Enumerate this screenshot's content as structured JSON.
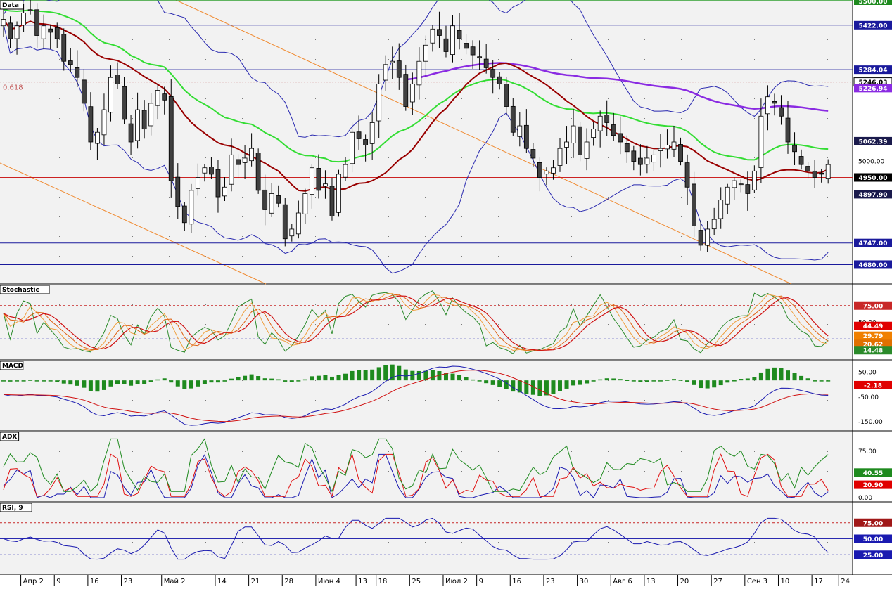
{
  "chart_data": [
    {
      "type": "candlestick",
      "title": "Data",
      "ylim": [
        4620,
        5500
      ],
      "y_tick_labels": [
        "5500.00",
        "5000.00"
      ],
      "horizontal_lines": [
        {
          "value": 5422,
          "label": "5422.00",
          "color": "#1a1a9c"
        },
        {
          "value": 5284.04,
          "label": "5284.04",
          "color": "#1a1a9c"
        },
        {
          "value": 5246.03,
          "label": "5246.03",
          "color": "#b03030",
          "dotted": true
        },
        {
          "value": 4950,
          "label": "4950.00",
          "color": "#cc2222"
        },
        {
          "value": 4747,
          "label": "4747.00",
          "color": "#1a1a9c"
        },
        {
          "value": 4680,
          "label": "4680.00",
          "color": "#1a1a9c"
        }
      ],
      "series_badges": [
        {
          "label": "5226.94",
          "value": 5226.94,
          "color": "#8a2be2"
        },
        {
          "label": "5062.39",
          "value": 5062.39,
          "color": "#1a1a4c"
        },
        {
          "label": "4950.00",
          "value": 4950,
          "color": "#000000"
        },
        {
          "label": "4897.90",
          "value": 4897.9,
          "color": "#1a1a4c"
        }
      ],
      "fib_label": "0.618",
      "close": [
        5440,
        5380,
        5420,
        5460,
        5470,
        5390,
        5420,
        5400,
        5380,
        5310,
        5300,
        5260,
        5180,
        5060,
        5090,
        5160,
        5260,
        5240,
        5130,
        5060,
        5160,
        5100,
        5180,
        5220,
        5190,
        4940,
        4860,
        4810,
        4910,
        4950,
        4980,
        4960,
        4890,
        4920,
        5020,
        4990,
        5010,
        5040,
        4910,
        4850,
        4900,
        4870,
        4760,
        4790,
        4840,
        4900,
        4980,
        4910,
        4930,
        4830,
        4960,
        4990,
        5090,
        5070,
        5050,
        5120,
        5240,
        5300,
        5310,
        5260,
        5170,
        5240,
        5310,
        5360,
        5410,
        5390,
        5340,
        5420,
        5380,
        5350,
        5330,
        5320,
        5290,
        5260,
        5240,
        5170,
        5090,
        5110,
        5040,
        5010,
        4950,
        4970,
        4980,
        5040,
        5060,
        5110,
        5020,
        5060,
        5100,
        5140,
        5120,
        5080,
        5060,
        5030,
        5000,
        4990,
        5010,
        5020,
        5040,
        5050,
        5060,
        5000,
        4920,
        4800,
        4740,
        4790,
        4820,
        4880,
        4920,
        4940,
        4930,
        4900,
        4970,
        5140,
        5200,
        5180,
        5140,
        5060,
        5030,
        4990,
        4970,
        4950,
        4960,
        4990
      ]
    },
    {
      "type": "line",
      "title": "Stochastic",
      "ylim": [
        0,
        100
      ],
      "reference_lines": [
        75,
        25
      ],
      "y_tick_labels": [
        "50.00"
      ],
      "value_badges": [
        {
          "label": "75.00",
          "value": 75,
          "color": "#c82828"
        },
        {
          "label": "44.49",
          "value": 44.49,
          "color": "#e00000"
        },
        {
          "label": "29.79",
          "value": 29.79,
          "color": "#f08000"
        },
        {
          "label": "20.62",
          "value": 20.62,
          "color": "#e07000"
        },
        {
          "label": "14.48",
          "value": 14.48,
          "color": "#2a8a2a"
        }
      ]
    },
    {
      "type": "bar+line",
      "title": "MACD",
      "ylim": [
        -170,
        80
      ],
      "y_tick_labels": [
        "50.00",
        "-50.00",
        "-150.00"
      ],
      "value_badges": [
        {
          "label": "-2.18",
          "value": -2.18,
          "color": "#e00000"
        }
      ]
    },
    {
      "type": "line",
      "title": "ADX",
      "ylim": [
        0,
        100
      ],
      "y_tick_labels": [
        "75.00",
        "0.00"
      ],
      "value_badges": [
        {
          "label": "40.55",
          "value": 40.55,
          "color": "#1e8a1e"
        },
        {
          "label": "20.90",
          "value": 20.9,
          "color": "#e00000"
        }
      ]
    },
    {
      "type": "line",
      "title": "RSI, 9",
      "ylim": [
        0,
        100
      ],
      "reference_lines": [
        75,
        50,
        25
      ],
      "value_badges": [
        {
          "label": "75.00",
          "value": 75,
          "color": "#a01818"
        },
        {
          "label": "50.00",
          "value": 50,
          "color": "#1a1ab0"
        },
        {
          "label": "25.00",
          "value": 25,
          "color": "#1a1ab0"
        }
      ]
    }
  ],
  "x_axis": {
    "labels": [
      {
        "label": "Апр 2",
        "index": 3
      },
      {
        "label": "9",
        "index": 8
      },
      {
        "label": "16",
        "index": 13
      },
      {
        "label": "23",
        "index": 18
      },
      {
        "label": "Май 2",
        "index": 24
      },
      {
        "label": "14",
        "index": 32
      },
      {
        "label": "21",
        "index": 37
      },
      {
        "label": "28",
        "index": 42
      },
      {
        "label": "Июн 4",
        "index": 47
      },
      {
        "label": "13",
        "index": 53
      },
      {
        "label": "18",
        "index": 56
      },
      {
        "label": "25",
        "index": 61
      },
      {
        "label": "Июл 2",
        "index": 66
      },
      {
        "label": "9",
        "index": 71
      },
      {
        "label": "16",
        "index": 76
      },
      {
        "label": "23",
        "index": 81
      },
      {
        "label": "30",
        "index": 86
      },
      {
        "label": "Авг 6",
        "index": 91
      },
      {
        "label": "13",
        "index": 96
      },
      {
        "label": "20",
        "index": 101
      },
      {
        "label": "27",
        "index": 106
      },
      {
        "label": "Сен 3",
        "index": 111
      },
      {
        "label": "10",
        "index": 116
      },
      {
        "label": "17",
        "index": 121
      },
      {
        "label": "24",
        "index": 125
      }
    ]
  }
}
